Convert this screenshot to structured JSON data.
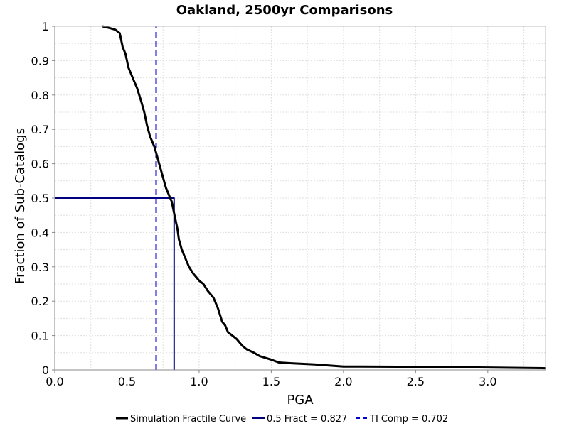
{
  "chart_data": {
    "type": "line",
    "title": "Oakland, 2500yr Comparisons",
    "xlabel": "PGA",
    "ylabel": "Fraction of Sub-Catalogs",
    "xlim": [
      0,
      3.4
    ],
    "ylim": [
      0,
      1
    ],
    "x_ticks": [
      "0.0",
      "0.5",
      "1.0",
      "1.5",
      "2.0",
      "2.5",
      "3.0"
    ],
    "y_ticks": [
      "0",
      "0.1",
      "0.2",
      "0.3",
      "0.4",
      "0.5",
      "0.6",
      "0.7",
      "0.8",
      "0.9",
      "1"
    ],
    "grid": true,
    "legend_position": "bottom",
    "series": [
      {
        "name": "Simulation Fractile Curve",
        "color": "#000000",
        "style": "solid",
        "x": [
          0.33,
          0.38,
          0.42,
          0.45,
          0.46,
          0.47,
          0.49,
          0.5,
          0.51,
          0.53,
          0.55,
          0.57,
          0.6,
          0.62,
          0.64,
          0.66,
          0.69,
          0.71,
          0.73,
          0.75,
          0.77,
          0.79,
          0.81,
          0.82,
          0.83,
          0.85,
          0.86,
          0.88,
          0.9,
          0.93,
          0.96,
          0.98,
          1.0,
          1.03,
          1.06,
          1.08,
          1.1,
          1.13,
          1.16,
          1.18,
          1.2,
          1.23,
          1.26,
          1.3,
          1.33,
          1.38,
          1.42,
          1.46,
          1.5,
          1.55,
          1.57,
          1.65,
          1.8,
          2.0,
          2.5,
          3.0,
          3.4
        ],
        "y": [
          1.0,
          0.995,
          0.99,
          0.98,
          0.96,
          0.94,
          0.92,
          0.9,
          0.88,
          0.86,
          0.84,
          0.82,
          0.78,
          0.75,
          0.71,
          0.68,
          0.65,
          0.62,
          0.59,
          0.56,
          0.53,
          0.51,
          0.49,
          0.47,
          0.45,
          0.41,
          0.38,
          0.35,
          0.33,
          0.3,
          0.28,
          0.27,
          0.26,
          0.25,
          0.23,
          0.22,
          0.21,
          0.18,
          0.14,
          0.13,
          0.11,
          0.1,
          0.09,
          0.07,
          0.06,
          0.05,
          0.04,
          0.035,
          0.03,
          0.022,
          0.021,
          0.019,
          0.016,
          0.01,
          0.009,
          0.007,
          0.005
        ]
      },
      {
        "name": "0.5 Fract = 0.827",
        "color": "#000080",
        "style": "solid",
        "x": [
          0,
          0.827,
          0.827
        ],
        "y": [
          0.5,
          0.5,
          0
        ]
      },
      {
        "name": "TI Comp = 0.702",
        "color": "#0000cc",
        "style": "dashed",
        "x": [
          0.702,
          0.702
        ],
        "y": [
          0,
          1
        ]
      }
    ]
  }
}
